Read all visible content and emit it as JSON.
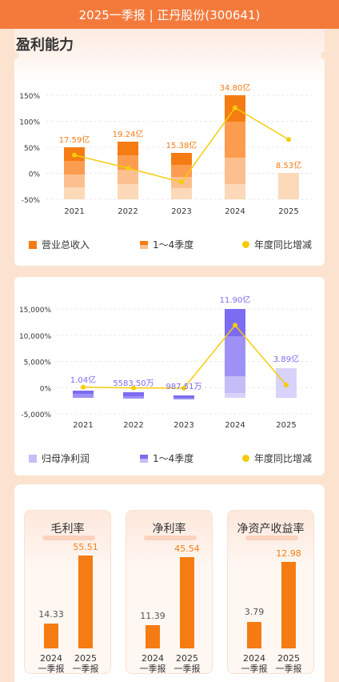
{
  "header": {
    "title": "2025一季报 | 正丹股份(300641)"
  },
  "section": {
    "title": "盈利能力"
  },
  "colors": {
    "orange": "#f57c12",
    "orange_light": "#fbc08e",
    "yellow": "#f5cc0a",
    "purple": "#7c6cf2",
    "purple_light": "#c4bdf7"
  },
  "chart_data": [
    {
      "type": "bar",
      "categories": [
        "2021",
        "2022",
        "2023",
        "2024",
        "2025"
      ],
      "ylim": [
        -50,
        150
      ],
      "yticks": [
        "150%",
        "100%",
        "50%",
        "0%",
        "-50%"
      ],
      "bar_labels": [
        "17.59亿",
        "19.24亿",
        "15.38亿",
        "34.80亿",
        "8.53亿"
      ],
      "yoy_growth_pct": [
        35,
        10,
        -17,
        126,
        65
      ],
      "legend": [
        "营业总收入",
        "1～4季度",
        "年度同比增减"
      ]
    },
    {
      "type": "bar",
      "categories": [
        "2021",
        "2022",
        "2023",
        "2024",
        "2025"
      ],
      "ylim": [
        -5000,
        15000
      ],
      "yticks": [
        "15,000%",
        "10,000%",
        "5,000%",
        "0%",
        "-5,000%"
      ],
      "bar_labels": [
        "1.04亿",
        "5583.50万",
        "987.51万",
        "11.90亿",
        "3.89亿"
      ],
      "yoy_growth_pct": [
        100,
        -60,
        -100,
        11900,
        500
      ],
      "legend": [
        "归母净利润",
        "1～4季度",
        "年度同比增减"
      ]
    }
  ],
  "kpis": [
    {
      "title": "毛利率",
      "values": [
        "14.33",
        "55.51"
      ]
    },
    {
      "title": "净利率",
      "values": [
        "11.39",
        "45.54"
      ]
    },
    {
      "title": "净资产收益率",
      "values": [
        "3.79",
        "12.98"
      ]
    }
  ],
  "kpi_periods": [
    {
      "year": "2024",
      "period": "一季报"
    },
    {
      "year": "2025",
      "period": "一季报"
    }
  ]
}
